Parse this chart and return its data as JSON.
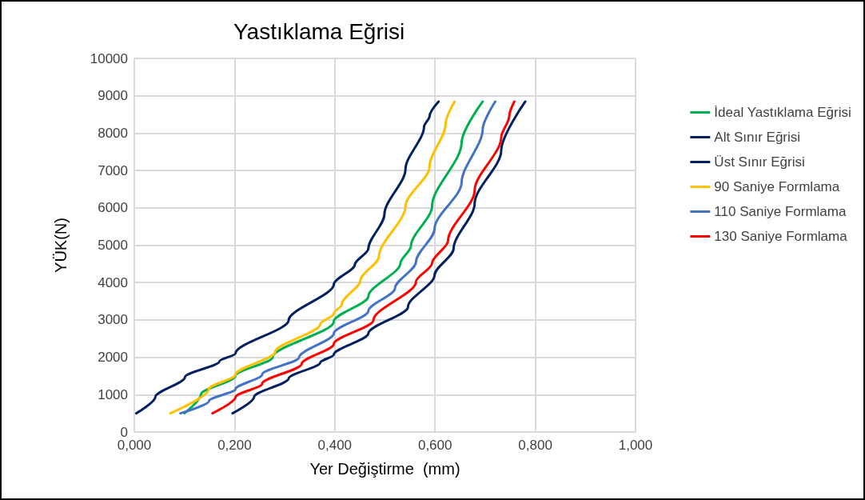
{
  "chart_data": {
    "type": "line",
    "title": "Yastıklama Eğrisi",
    "xlabel": "Yer Değiştirme  (mm)",
    "ylabel": "YÜK(N)",
    "xlim": [
      0,
      1
    ],
    "xticks": [
      {
        "value": 0,
        "label": "0,000"
      },
      {
        "value": 0.2,
        "label": "0,200"
      },
      {
        "value": 0.4,
        "label": "0,400"
      },
      {
        "value": 0.6,
        "label": "0,600"
      },
      {
        "value": 0.8,
        "label": "0,800"
      },
      {
        "value": 1,
        "label": "1,000"
      }
    ],
    "ylim": [
      0,
      10000
    ],
    "yticks": [
      0,
      1000,
      2000,
      3000,
      4000,
      5000,
      6000,
      7000,
      8000,
      9000,
      10000
    ],
    "grid": true,
    "legend": "right",
    "marker": "none",
    "line_style": "solid",
    "series": [
      {
        "name": "İdeal Yastıklama Eğrisi",
        "color": "#00b050",
        "x": [
          0.1,
          0.133,
          0.202,
          0.276,
          0.398,
          0.467,
          0.531,
          0.552,
          0.594,
          0.653,
          0.695
        ],
        "values": [
          500,
          1007,
          1504,
          2000,
          2957,
          3631,
          4518,
          4979,
          6043,
          7745,
          8844
        ]
      },
      {
        "name": "Alt Sınır Eğrisi",
        "color": "#002060",
        "x": [
          0.004,
          0.042,
          0.101,
          0.17,
          0.202,
          0.308,
          0.398,
          0.44,
          0.467,
          0.499,
          0.541,
          0.578,
          0.589,
          0.607
        ],
        "values": [
          500,
          936,
          1468,
          1894,
          2106,
          2993,
          3950,
          4482,
          4908,
          5830,
          7035,
          8170,
          8454,
          8844
        ]
      },
      {
        "name": "Üst Sınır Eğrisi",
        "color": "#002060",
        "x": [
          0.196,
          0.239,
          0.308,
          0.371,
          0.398,
          0.467,
          0.546,
          0.599,
          0.637,
          0.679,
          0.732,
          0.78
        ],
        "values": [
          500,
          936,
          1433,
          1858,
          2071,
          2638,
          3348,
          4199,
          4908,
          6114,
          7532,
          8844
        ]
      },
      {
        "name": "90 Saniye Formlama",
        "color": "#ffc000",
        "x": [
          0.072,
          0.149,
          0.202,
          0.281,
          0.371,
          0.398,
          0.414,
          0.451,
          0.488,
          0.541,
          0.589,
          0.621,
          0.639
        ],
        "values": [
          500,
          1149,
          1539,
          2142,
          2887,
          3170,
          3418,
          4057,
          4695,
          6043,
          7106,
          8241,
          8844
        ]
      },
      {
        "name": "110 Saniye Formlama",
        "color": "#4472c4",
        "x": [
          0.092,
          0.149,
          0.202,
          0.255,
          0.329,
          0.398,
          0.467,
          0.52,
          0.562,
          0.599,
          0.653,
          0.695,
          0.72
        ],
        "values": [
          500,
          830,
          1149,
          1539,
          2000,
          2638,
          3241,
          3844,
          4553,
          5440,
          6681,
          8099,
          8844
        ]
      },
      {
        "name": "130 Saniye Formlama",
        "color": "#ff0000",
        "x": [
          0.156,
          0.202,
          0.255,
          0.334,
          0.398,
          0.477,
          0.562,
          0.594,
          0.626,
          0.679,
          0.732,
          0.748,
          0.758
        ],
        "values": [
          500,
          936,
          1291,
          1823,
          2355,
          2993,
          4021,
          4518,
          5121,
          6468,
          7887,
          8454,
          8844
        ]
      }
    ]
  }
}
